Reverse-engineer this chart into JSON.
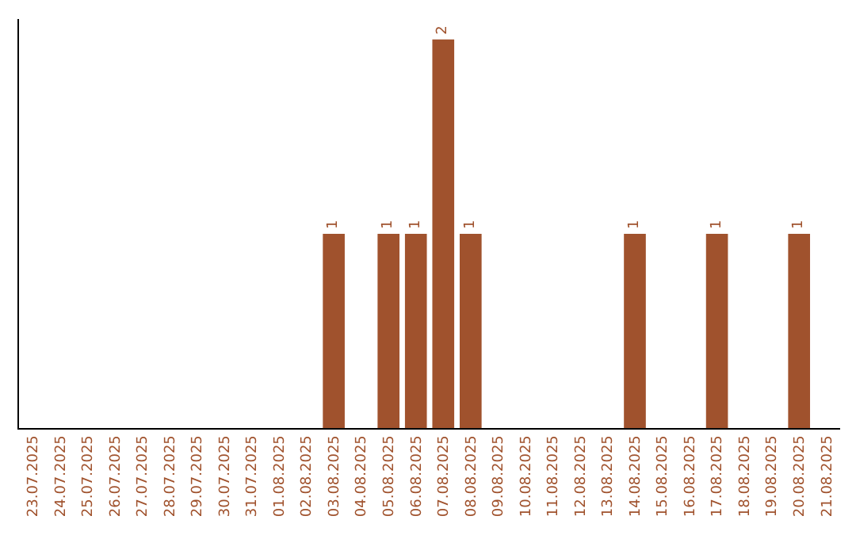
{
  "chart_data": {
    "type": "bar",
    "categories": [
      "23.07.2025",
      "24.07.2025",
      "25.07.2025",
      "26.07.2025",
      "27.07.2025",
      "28.07.2025",
      "29.07.2025",
      "30.07.2025",
      "31.07.2025",
      "01.08.2025",
      "02.08.2025",
      "03.08.2025",
      "04.08.2025",
      "05.08.2025",
      "06.08.2025",
      "07.08.2025",
      "08.08.2025",
      "09.08.2025",
      "10.08.2025",
      "11.08.2025",
      "12.08.2025",
      "13.08.2025",
      "14.08.2025",
      "15.08.2025",
      "16.08.2025",
      "17.08.2025",
      "18.08.2025",
      "19.08.2025",
      "20.08.2025",
      "21.08.2025"
    ],
    "values": [
      0,
      0,
      0,
      0,
      0,
      0,
      0,
      0,
      0,
      0,
      0,
      1,
      0,
      1,
      1,
      2,
      1,
      0,
      0,
      0,
      0,
      0,
      1,
      0,
      0,
      1,
      0,
      0,
      1,
      0
    ],
    "value_labels": [
      null,
      null,
      null,
      null,
      null,
      null,
      null,
      null,
      null,
      null,
      null,
      "1",
      null,
      "1",
      "1",
      "2",
      "1",
      null,
      null,
      null,
      null,
      null,
      "1",
      null,
      null,
      "1",
      null,
      null,
      "1",
      null
    ],
    "color": "#a0522d",
    "tick_labels": "x"
  }
}
